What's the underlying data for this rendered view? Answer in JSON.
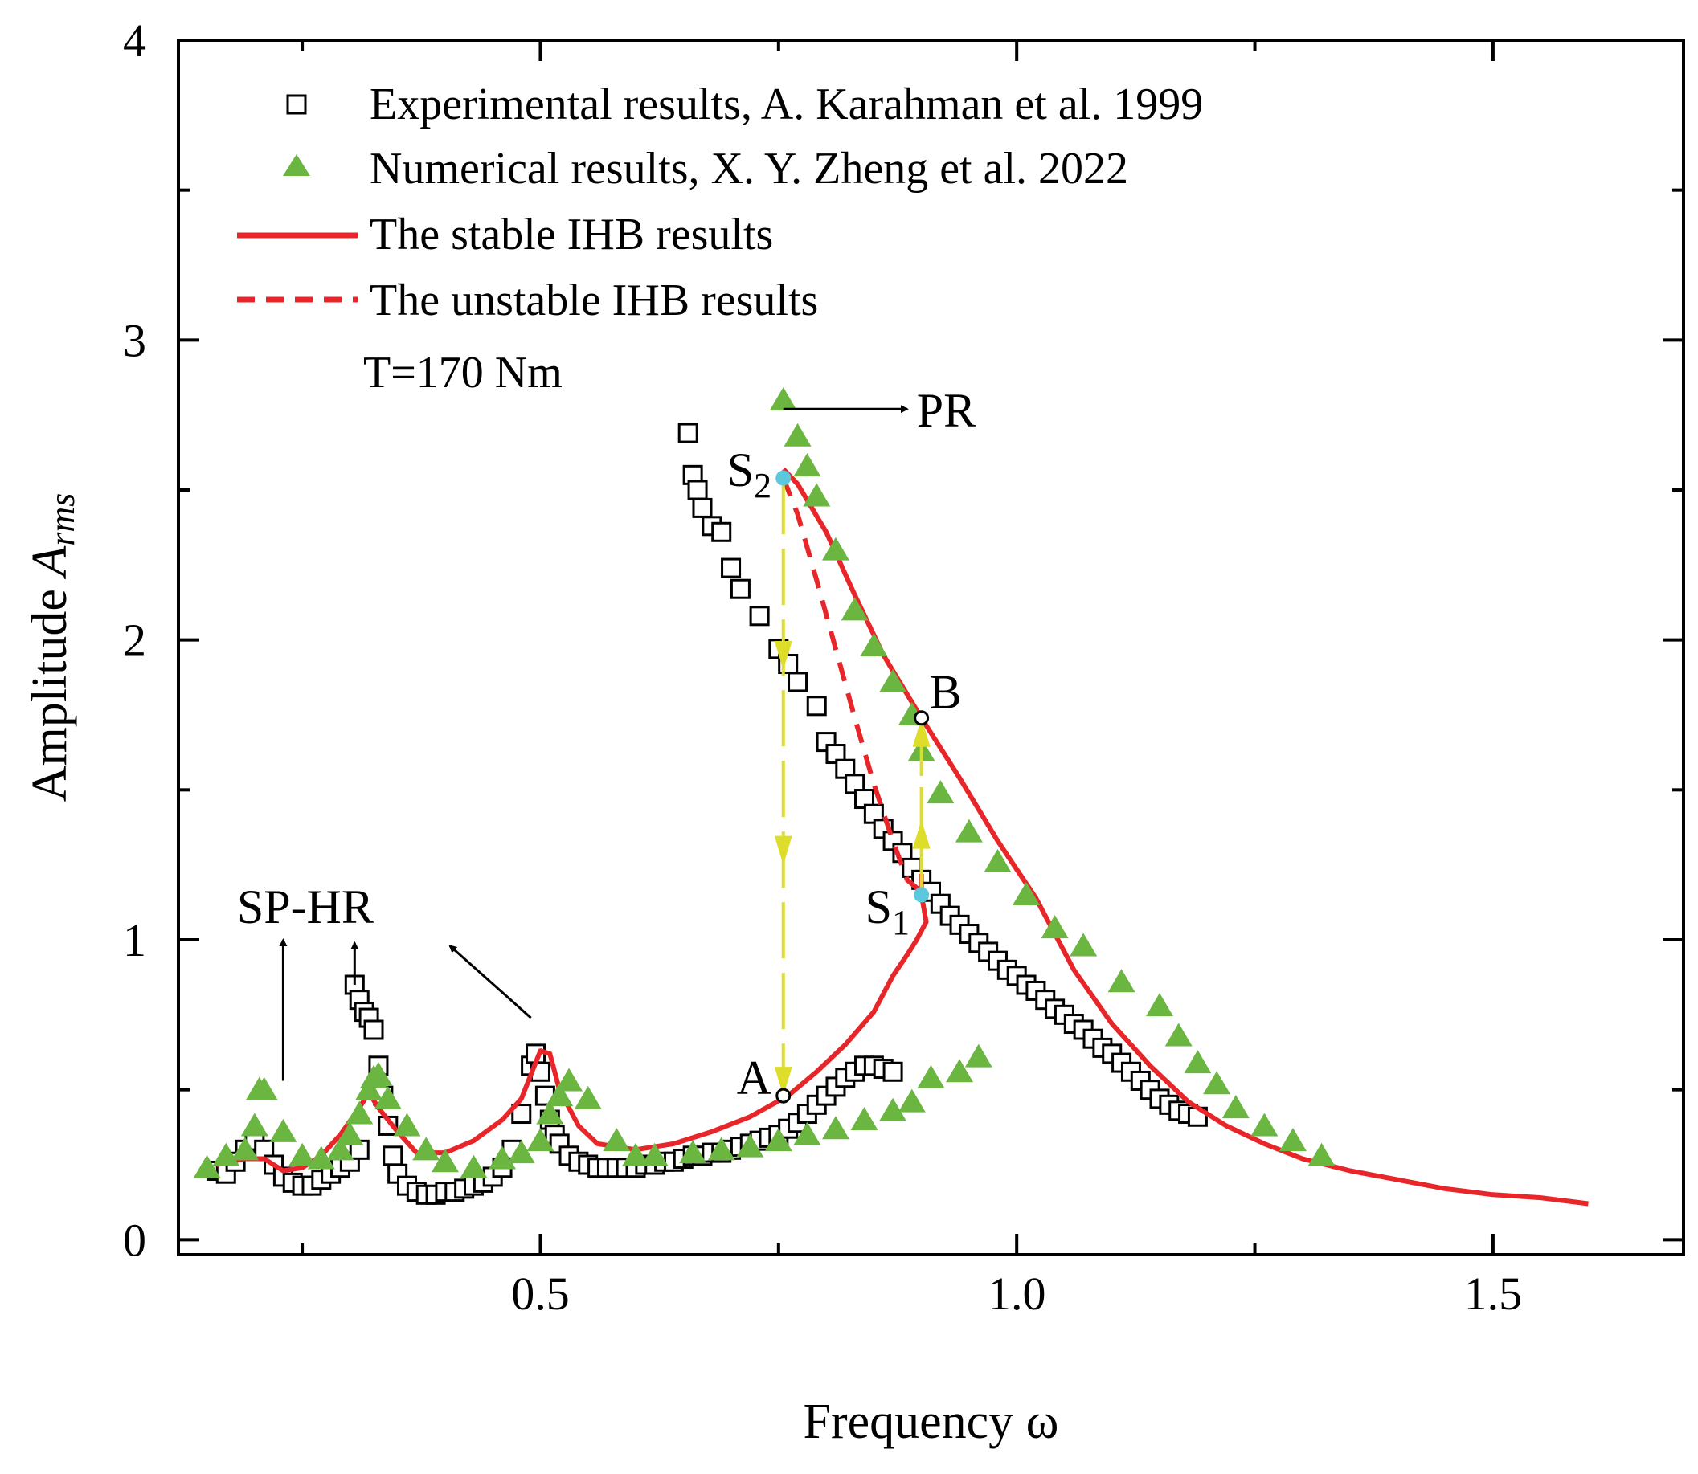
{
  "chart_data": {
    "type": "line",
    "title": "",
    "xlabel": "Frequency ω",
    "ylabel_prefix": "Amplitude ",
    "ylabel_symbol": "A",
    "ylabel_sub": "rms",
    "xlim": [
      0.12,
      1.7
    ],
    "ylim": [
      -0.05,
      4.0
    ],
    "xticks": [
      0.5,
      1.0,
      1.5
    ],
    "xtick_labels": [
      "0.5",
      "1.0",
      "1.5"
    ],
    "xminor": [
      0.25,
      0.75,
      1.25
    ],
    "yticks": [
      0,
      1,
      2,
      3,
      4
    ],
    "ytick_labels": [
      "0",
      "1",
      "2",
      "3",
      "4"
    ],
    "yminor": [
      0.5,
      1.5,
      2.5,
      3.5
    ],
    "grid": false,
    "legend_position": "top-left",
    "legend": [
      {
        "label": "Experimental results, A. Karahman et al. 1999",
        "marker": "square"
      },
      {
        "label": "Numerical results, X. Y. Zheng et al. 2022",
        "marker": "triangle"
      },
      {
        "label": "The stable IHB results",
        "marker": "solid-line"
      },
      {
        "label": "The unstable IHB results",
        "marker": "dashed-line"
      }
    ],
    "condition_label": "T=170 Nm",
    "colors": {
      "stable": "#e8262a",
      "numerical": "#6ab640",
      "jump": "#dddd2a",
      "saddle": "#5bc8dd"
    },
    "series": [
      {
        "name": "Experimental results, A. Karahman et al. 1999",
        "style": "open-square",
        "x": [
          0.16,
          0.17,
          0.18,
          0.19,
          0.2,
          0.21,
          0.22,
          0.23,
          0.24,
          0.25,
          0.26,
          0.27,
          0.28,
          0.29,
          0.3,
          0.31,
          0.305,
          0.31,
          0.315,
          0.32,
          0.325,
          0.33,
          0.335,
          0.34,
          0.345,
          0.35,
          0.36,
          0.37,
          0.38,
          0.39,
          0.4,
          0.41,
          0.42,
          0.43,
          0.44,
          0.45,
          0.46,
          0.47,
          0.48,
          0.49,
          0.495,
          0.5,
          0.505,
          0.51,
          0.515,
          0.52,
          0.53,
          0.54,
          0.55,
          0.56,
          0.57,
          0.58,
          0.59,
          0.6,
          0.61,
          0.62,
          0.63,
          0.64,
          0.65,
          0.66,
          0.67,
          0.68,
          0.69,
          0.7,
          0.71,
          0.72,
          0.73,
          0.74,
          0.75,
          0.76,
          0.77,
          0.78,
          0.79,
          0.8,
          0.81,
          0.82,
          0.83,
          0.84,
          0.85,
          0.86,
          0.87,
          0.655,
          0.66,
          0.665,
          0.67,
          0.68,
          0.69,
          0.7,
          0.71,
          0.73,
          0.75,
          0.76,
          0.77,
          0.79,
          0.8,
          0.81,
          0.82,
          0.83,
          0.84,
          0.85,
          0.86,
          0.87,
          0.88,
          0.89,
          0.9,
          0.91,
          0.92,
          0.93,
          0.94,
          0.95,
          0.96,
          0.97,
          0.98,
          0.99,
          1.0,
          1.01,
          1.02,
          1.03,
          1.04,
          1.05,
          1.06,
          1.07,
          1.08,
          1.09,
          1.1,
          1.11,
          1.12,
          1.13,
          1.14,
          1.15,
          1.16,
          1.17,
          1.18,
          1.19
        ],
        "y": [
          0.23,
          0.22,
          0.26,
          0.3,
          0.33,
          0.3,
          0.25,
          0.21,
          0.19,
          0.18,
          0.18,
          0.2,
          0.22,
          0.24,
          0.26,
          0.3,
          0.85,
          0.8,
          0.76,
          0.74,
          0.7,
          0.58,
          0.48,
          0.38,
          0.28,
          0.22,
          0.18,
          0.16,
          0.15,
          0.15,
          0.16,
          0.16,
          0.17,
          0.18,
          0.19,
          0.21,
          0.24,
          0.3,
          0.42,
          0.58,
          0.62,
          0.56,
          0.48,
          0.4,
          0.35,
          0.32,
          0.28,
          0.26,
          0.25,
          0.24,
          0.24,
          0.24,
          0.24,
          0.24,
          0.25,
          0.25,
          0.26,
          0.26,
          0.27,
          0.28,
          0.28,
          0.29,
          0.29,
          0.3,
          0.31,
          0.32,
          0.33,
          0.34,
          0.35,
          0.37,
          0.39,
          0.42,
          0.45,
          0.48,
          0.51,
          0.54,
          0.56,
          0.58,
          0.58,
          0.57,
          0.56,
          2.69,
          2.55,
          2.5,
          2.44,
          2.38,
          2.36,
          2.24,
          2.17,
          2.08,
          1.97,
          1.92,
          1.86,
          1.78,
          1.66,
          1.62,
          1.57,
          1.52,
          1.47,
          1.42,
          1.37,
          1.33,
          1.29,
          1.24,
          1.2,
          1.16,
          1.12,
          1.08,
          1.05,
          1.02,
          0.99,
          0.96,
          0.93,
          0.9,
          0.88,
          0.85,
          0.83,
          0.8,
          0.77,
          0.75,
          0.72,
          0.7,
          0.67,
          0.64,
          0.62,
          0.59,
          0.56,
          0.53,
          0.5,
          0.47,
          0.45,
          0.43,
          0.42,
          0.41
        ]
      },
      {
        "name": "Numerical results, X. Y. Zheng et al. 2022",
        "style": "filled-triangle",
        "x": [
          0.15,
          0.17,
          0.19,
          0.2,
          0.205,
          0.21,
          0.23,
          0.25,
          0.27,
          0.29,
          0.3,
          0.31,
          0.32,
          0.325,
          0.33,
          0.34,
          0.36,
          0.38,
          0.4,
          0.43,
          0.46,
          0.48,
          0.5,
          0.51,
          0.52,
          0.53,
          0.55,
          0.58,
          0.6,
          0.62,
          0.66,
          0.69,
          0.72,
          0.75,
          0.78,
          0.81,
          0.84,
          0.87,
          0.89,
          0.91,
          0.94,
          0.96,
          0.755,
          0.77,
          0.78,
          0.79,
          0.81,
          0.83,
          0.85,
          0.87,
          0.89,
          0.9,
          0.92,
          0.95,
          0.98,
          1.01,
          1.04,
          1.07,
          1.11,
          1.15,
          1.17,
          1.19,
          1.21,
          1.23,
          1.26,
          1.29,
          1.32
        ],
        "y": [
          0.24,
          0.28,
          0.3,
          0.38,
          0.5,
          0.5,
          0.36,
          0.28,
          0.27,
          0.3,
          0.35,
          0.42,
          0.5,
          0.54,
          0.55,
          0.47,
          0.38,
          0.3,
          0.26,
          0.24,
          0.27,
          0.29,
          0.33,
          0.42,
          0.48,
          0.53,
          0.47,
          0.33,
          0.28,
          0.28,
          0.29,
          0.3,
          0.31,
          0.33,
          0.35,
          0.37,
          0.4,
          0.43,
          0.46,
          0.54,
          0.56,
          0.61,
          2.8,
          2.68,
          2.58,
          2.48,
          2.3,
          2.1,
          1.98,
          1.86,
          1.75,
          1.63,
          1.49,
          1.36,
          1.26,
          1.15,
          1.04,
          0.98,
          0.86,
          0.78,
          0.68,
          0.59,
          0.52,
          0.44,
          0.38,
          0.33,
          0.28
        ]
      },
      {
        "name": "The stable IHB results",
        "style": "solid",
        "segments": [
          {
            "x": [
              0.16,
              0.19,
              0.21,
              0.23,
              0.25,
              0.27,
              0.29,
              0.31,
              0.32,
              0.33,
              0.35,
              0.37,
              0.4,
              0.43,
              0.46,
              0.48,
              0.49,
              0.5,
              0.51,
              0.52,
              0.54,
              0.56,
              0.6,
              0.64,
              0.68,
              0.72,
              0.76,
              0.79,
              0.82,
              0.85,
              0.87,
              0.885,
              0.895,
              0.9,
              0.905,
              0.9,
              0.9
            ],
            "y": [
              0.25,
              0.27,
              0.27,
              0.23,
              0.24,
              0.28,
              0.35,
              0.44,
              0.49,
              0.44,
              0.36,
              0.29,
              0.29,
              0.33,
              0.4,
              0.47,
              0.55,
              0.63,
              0.62,
              0.5,
              0.38,
              0.32,
              0.3,
              0.32,
              0.36,
              0.41,
              0.48,
              0.56,
              0.65,
              0.76,
              0.88,
              0.95,
              1.0,
              1.03,
              1.06,
              1.15,
              1.22
            ]
          },
          {
            "x": [
              0.755,
              0.77,
              0.8,
              0.83,
              0.86,
              0.9,
              0.94,
              0.98,
              1.02,
              1.06,
              1.1,
              1.14,
              1.18,
              1.22,
              1.26,
              1.3,
              1.35,
              1.4,
              1.45,
              1.5,
              1.55,
              1.6
            ],
            "y": [
              2.57,
              2.52,
              2.36,
              2.15,
              1.95,
              1.74,
              1.54,
              1.33,
              1.14,
              0.9,
              0.72,
              0.58,
              0.46,
              0.38,
              0.32,
              0.27,
              0.23,
              0.2,
              0.17,
              0.15,
              0.14,
              0.12
            ]
          }
        ]
      },
      {
        "name": "The unstable IHB results",
        "style": "dashed",
        "x": [
          0.755,
          0.77,
          0.79,
          0.81,
          0.83,
          0.85,
          0.87,
          0.885,
          0.9
        ],
        "y": [
          2.54,
          2.42,
          2.2,
          1.97,
          1.74,
          1.52,
          1.33,
          1.2,
          1.16
        ]
      }
    ],
    "points": [
      {
        "label": "S",
        "sub": "2",
        "x": 0.755,
        "y": 2.54,
        "fill": "#5bc8dd"
      },
      {
        "label": "S",
        "sub": "1",
        "x": 0.9,
        "y": 1.15,
        "fill": "#5bc8dd"
      },
      {
        "label": "A",
        "x": 0.755,
        "y": 0.48,
        "fill": "#ffffff"
      },
      {
        "label": "B",
        "x": 0.9,
        "y": 1.74,
        "fill": "#ffffff"
      }
    ],
    "annotations": {
      "pr": "PR",
      "sphr": "SP-HR"
    }
  }
}
